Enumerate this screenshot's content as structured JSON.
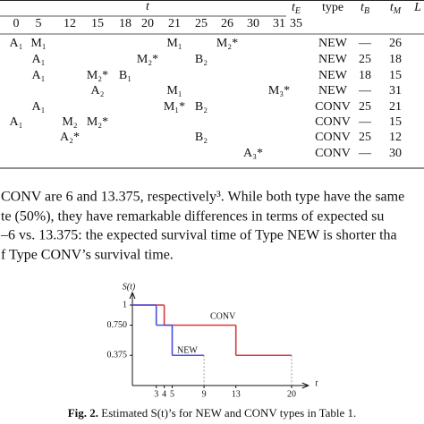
{
  "table": {
    "span_header": "t",
    "right_headers": [
      {
        "base": "t",
        "sub": "E"
      },
      {
        "base": "type",
        "sub": null
      },
      {
        "base": "t",
        "sub": "B"
      },
      {
        "base": "t",
        "sub": "M"
      },
      {
        "base": "L",
        "sub": null
      }
    ],
    "time_points": [
      "0",
      "5",
      "12",
      "15",
      "18",
      "20",
      "21",
      "25",
      "26",
      "30",
      "31",
      "35"
    ],
    "rows": [
      {
        "cells": [
          "A₁",
          "M₁",
          null,
          null,
          null,
          null,
          "M₁",
          null,
          "M₂*",
          null,
          null,
          null
        ],
        "type": "NEW",
        "t_B": "—",
        "t_M": "26"
      },
      {
        "cells": [
          null,
          "A₁",
          null,
          null,
          null,
          "M₂*",
          null,
          "B₂",
          null,
          null,
          null,
          null
        ],
        "type": "NEW",
        "t_B": "25",
        "t_M": "18"
      },
      {
        "cells": [
          null,
          "A₁",
          null,
          "M₂*",
          "B₁",
          null,
          null,
          null,
          null,
          null,
          null,
          null
        ],
        "type": "NEW",
        "t_B": "18",
        "t_M": "15"
      },
      {
        "cells": [
          null,
          null,
          null,
          "A₂",
          null,
          null,
          "M₁",
          null,
          null,
          null,
          "M₃*",
          null
        ],
        "type": "NEW",
        "t_B": "—",
        "t_M": "31"
      },
      {
        "cells": [
          null,
          "A₁",
          null,
          null,
          null,
          null,
          "M₁*",
          "B₂",
          null,
          null,
          null,
          null
        ],
        "type": "CONV",
        "t_B": "25",
        "t_M": "21"
      },
      {
        "cells": [
          "A₁",
          null,
          "M₂",
          "M₂*",
          null,
          null,
          null,
          null,
          null,
          null,
          null,
          null
        ],
        "type": "CONV",
        "t_B": "—",
        "t_M": "15"
      },
      {
        "cells": [
          null,
          null,
          "A₂*",
          null,
          null,
          null,
          null,
          "B₂",
          null,
          null,
          null,
          null
        ],
        "type": "CONV",
        "t_B": "25",
        "t_M": "12"
      },
      {
        "cells": [
          null,
          null,
          null,
          null,
          null,
          null,
          null,
          null,
          null,
          "A₃*",
          null,
          null
        ],
        "type": "CONV",
        "t_B": "—",
        "t_M": "30"
      }
    ]
  },
  "paragraph": [
    "CONV are 6 and 13.375, respectively³. While both type have the same",
    "te (50%), they have remarkable differences in terms of expected su",
    "–6 vs. 13.375: the expected survival time of Type NEW is shorter tha",
    "f Type CONV’s survival time."
  ],
  "chart_data": {
    "type": "step",
    "y_label": "S(t)",
    "x_label": "t",
    "xlim": [
      0,
      22
    ],
    "ylim": [
      0,
      1.1
    ],
    "xticks": [
      3,
      4,
      5,
      9,
      13,
      20
    ],
    "yticks": [
      1,
      {
        "value": 0.75,
        "label": "0.750"
      },
      0.375
    ],
    "series": [
      {
        "name": "CONV",
        "color": "#d9383a",
        "x": [
          0,
          4,
          13,
          20
        ],
        "values": [
          1,
          0.75,
          0.375,
          0.375
        ]
      },
      {
        "name": "NEW",
        "color": "#4a4ee0",
        "x": [
          0,
          3,
          5,
          9
        ],
        "values": [
          1,
          0.75,
          0.375,
          0.375
        ]
      }
    ]
  },
  "caption": {
    "label": "Fig. 2.",
    "text": "Estimated S(t)’s for NEW and CONV types in Table 1."
  }
}
